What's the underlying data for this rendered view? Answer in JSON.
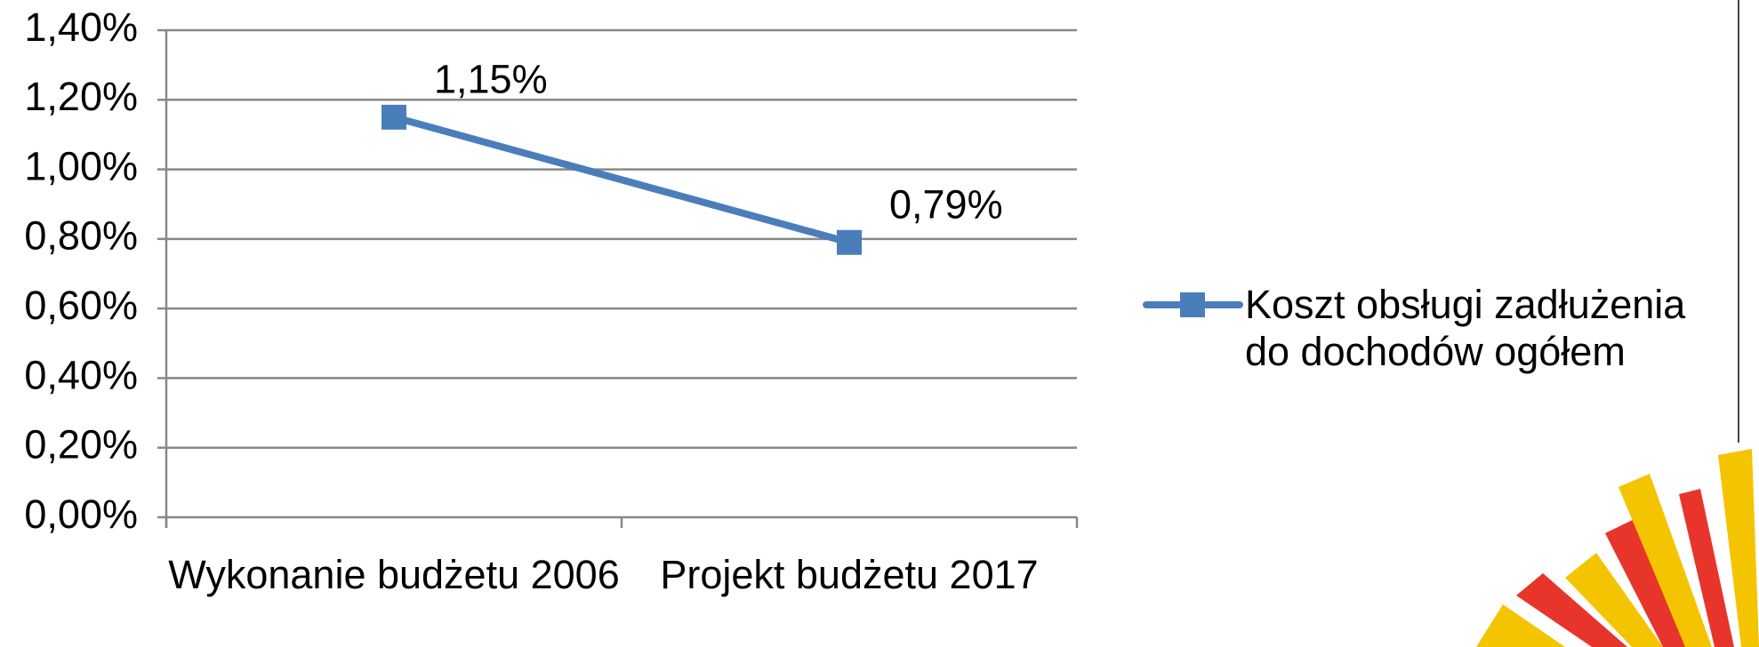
{
  "chart_data": {
    "type": "line",
    "categories": [
      "Wykonanie budżetu 2006",
      "Projekt budżetu 2017"
    ],
    "series": [
      {
        "name": "Koszt obsługi zadłużenia do dochodów ogółem",
        "color": "#4a7ebb",
        "values": [
          1.15,
          0.79
        ],
        "value_labels": [
          "1,15%",
          "0,79%"
        ]
      }
    ],
    "ylim": [
      0,
      1.4
    ],
    "yticks": [
      {
        "value": 0,
        "label": "0,00%"
      },
      {
        "value": 0.2,
        "label": "0,20%"
      },
      {
        "value": 0.4,
        "label": "0,40%"
      },
      {
        "value": 0.6,
        "label": "0,60%"
      },
      {
        "value": 0.8,
        "label": "0,80%"
      },
      {
        "value": 1.0,
        "label": "1,00%"
      },
      {
        "value": 1.2,
        "label": "1,20%"
      },
      {
        "value": 1.4,
        "label": "1,40%"
      }
    ],
    "grid": true,
    "legend": "right"
  }
}
